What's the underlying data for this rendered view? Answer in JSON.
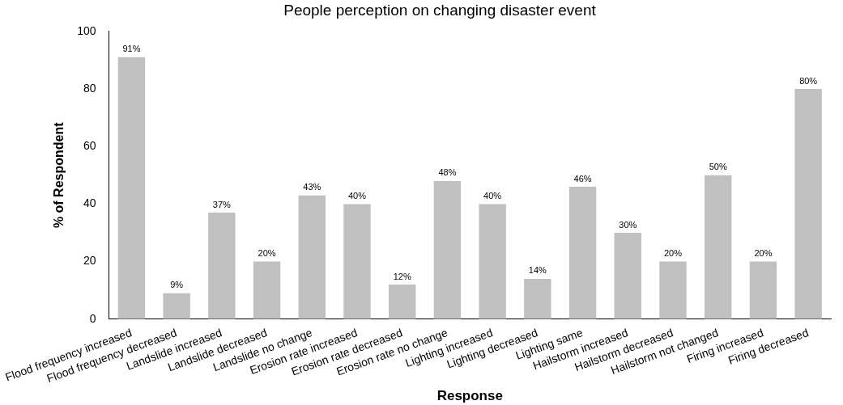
{
  "chart_data": {
    "type": "bar",
    "title": "People perception on changing disaster event",
    "xlabel": "Response",
    "ylabel": "% of Respondent",
    "categories": [
      "Flood frequency increased",
      "Flood frequency decreased",
      "Landslide increased",
      "Landslide decreased",
      "Landslide no change",
      "Erosion rate increased",
      "Erosion rate decreased",
      "Erosion rate no change",
      "Lighting increased",
      "Lighting decreased",
      "Lighting same",
      "Hailstorm increased",
      "Hailstorm decreased",
      "Hailstorm not changed",
      "Firing increased",
      "Firing decreased"
    ],
    "values": [
      91,
      9,
      37,
      20,
      43,
      40,
      12,
      48,
      40,
      14,
      46,
      30,
      20,
      50,
      20,
      80
    ],
    "value_labels": [
      "91%",
      "9%",
      "37%",
      "20%",
      "43%",
      "40%",
      "12%",
      "48%",
      "40%",
      "14%",
      "46%",
      "30%",
      "20%",
      "50%",
      "20%",
      "80%"
    ],
    "color": "#c0c0c0",
    "ylim": [
      0,
      100
    ],
    "yticks": [
      0,
      20,
      40,
      60,
      80,
      100
    ],
    "grid": false,
    "legend": false
  }
}
